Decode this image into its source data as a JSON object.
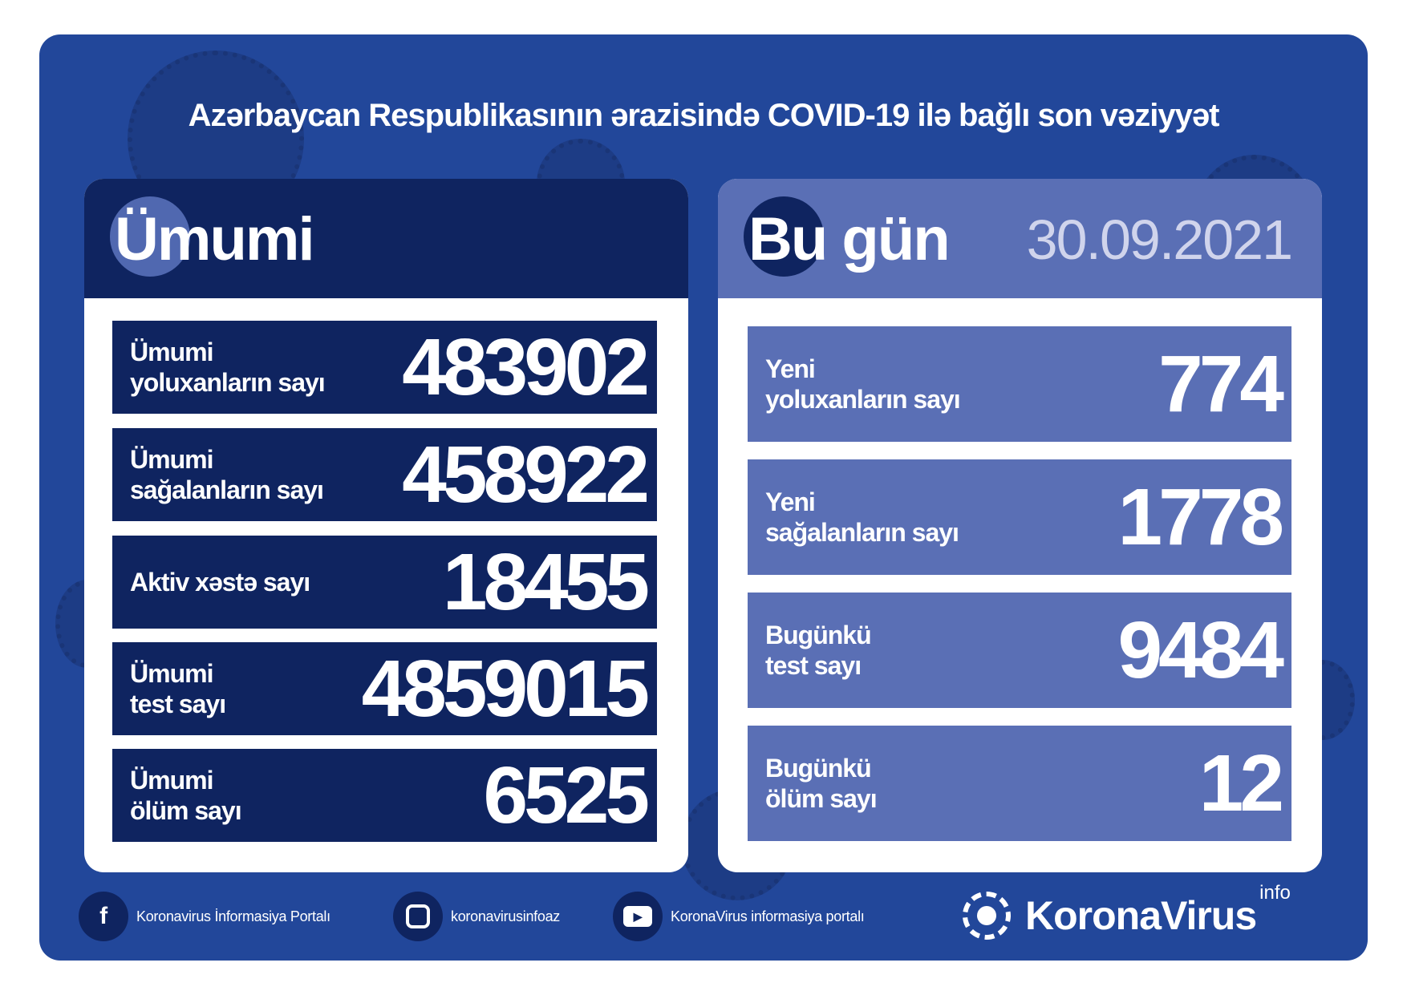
{
  "title": "Azərbaycan Respublikasının ərazisində COVID-19 ilə bağlı son vəziyyət",
  "colors": {
    "background": "#22479a",
    "dark_navy": "#0f2460",
    "light_blue": "#5a6fb5",
    "date": "#d0d4ec"
  },
  "total": {
    "heading": "Ümumi",
    "rows": [
      {
        "label1": "Ümumi",
        "label2": "yoluxanların sayı",
        "value": "483902"
      },
      {
        "label1": "Ümumi",
        "label2": "sağalanların sayı",
        "value": "458922"
      },
      {
        "label1": "Aktiv xəstə sayı",
        "label2": "",
        "value": "18455"
      },
      {
        "label1": "Ümumi",
        "label2": "test sayı",
        "value": "4859015"
      },
      {
        "label1": "Ümumi",
        "label2": "ölüm sayı",
        "value": "6525"
      }
    ]
  },
  "today": {
    "heading": "Bu gün",
    "date": "30.09.2021",
    "rows": [
      {
        "label1": "Yeni",
        "label2": "yoluxanların sayı",
        "value": "774"
      },
      {
        "label1": "Yeni",
        "label2": "sağalanların sayı",
        "value": "1778"
      },
      {
        "label1": "Bugünkü",
        "label2": "test sayı",
        "value": "9484"
      },
      {
        "label1": "Bugünkü",
        "label2": "ölüm sayı",
        "value": "12"
      }
    ]
  },
  "footer": {
    "facebook": {
      "icon": "facebook-icon",
      "label": "Koronavirus İnformasiya Portalı"
    },
    "instagram": {
      "icon": "instagram-icon",
      "label": "koronavirusinfoaz"
    },
    "youtube": {
      "icon": "youtube-icon",
      "label": "KoronaVirus informasiya portalı"
    },
    "logo": {
      "brand": "KoronaVirus",
      "sup": "info"
    }
  }
}
